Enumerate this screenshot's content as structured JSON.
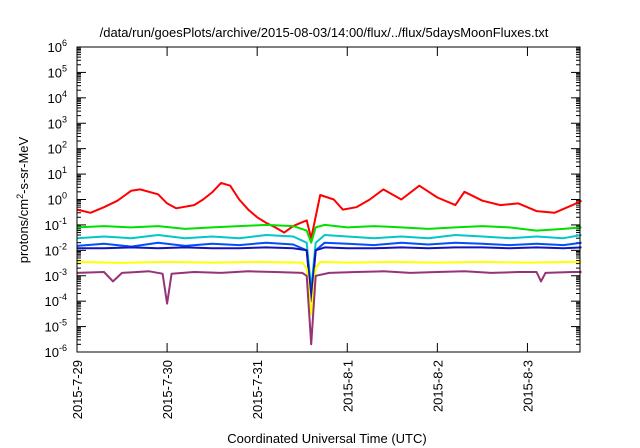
{
  "chart_data": {
    "type": "line",
    "title": "/data/run/goesPlots/archive/2015-08-03/14:00/flux/../flux/5daysMoonFluxes.txt",
    "xlabel": "Coordinated Universal Time (UTC)",
    "ylabel": {
      "base": "protons/cm",
      "sup": "2",
      "rest": "-s-sr-MeV"
    },
    "yscale": "log",
    "ylim": [
      1e-06,
      1000000.0
    ],
    "xlim_days": [
      "2015-07-29T00:00",
      "2015-08-03T14:00"
    ],
    "y_ticks": [
      {
        "value": 1e-06,
        "exp": "-6"
      },
      {
        "value": 1e-05,
        "exp": "-5"
      },
      {
        "value": 0.0001,
        "exp": "-4"
      },
      {
        "value": 0.001,
        "exp": "-3"
      },
      {
        "value": 0.01,
        "exp": "-2"
      },
      {
        "value": 0.1,
        "exp": "-1"
      },
      {
        "value": 1,
        "exp": "0"
      },
      {
        "value": 10,
        "exp": "1"
      },
      {
        "value": 100,
        "exp": "2"
      },
      {
        "value": 1000,
        "exp": "3"
      },
      {
        "value": 10000,
        "exp": "4"
      },
      {
        "value": 100000,
        "exp": "5"
      },
      {
        "value": 1000000,
        "exp": "6"
      }
    ],
    "x_ticks": [
      {
        "day": 0,
        "label": "2015-7-29"
      },
      {
        "day": 1,
        "label": "2015-7-30"
      },
      {
        "day": 2,
        "label": "2015-7-31"
      },
      {
        "day": 3,
        "label": "2015-8-1"
      },
      {
        "day": 4,
        "label": "2015-8-2"
      },
      {
        "day": 5,
        "label": "2015-8-3"
      }
    ],
    "grid": false,
    "legend": "none",
    "series": [
      {
        "color": "#ff0000",
        "x": [
          0,
          0.15,
          0.3,
          0.45,
          0.6,
          0.7,
          0.9,
          1.0,
          1.1,
          1.3,
          1.4,
          1.5,
          1.6,
          1.7,
          1.8,
          1.9,
          2.0,
          2.1,
          2.2,
          2.3,
          2.4,
          2.48,
          2.55,
          2.6,
          2.7,
          2.85,
          2.95,
          3.1,
          3.25,
          3.4,
          3.6,
          3.8,
          4.0,
          4.2,
          4.3,
          4.5,
          4.7,
          4.9,
          5.1,
          5.3,
          5.5,
          5.6
        ],
        "values": [
          0.4,
          0.3,
          0.5,
          0.9,
          2.2,
          2.5,
          1.6,
          0.7,
          0.45,
          0.6,
          1.0,
          1.9,
          4.5,
          3.5,
          1.0,
          0.4,
          0.2,
          0.12,
          0.08,
          0.05,
          0.09,
          0.12,
          0.15,
          0.03,
          1.5,
          1.0,
          0.4,
          0.5,
          1.0,
          2.5,
          1.0,
          3.5,
          1.2,
          0.6,
          2.0,
          0.9,
          0.6,
          0.7,
          0.35,
          0.3,
          0.6,
          0.9
        ]
      },
      {
        "color": "#00e000",
        "x": [
          0,
          0.3,
          0.6,
          0.9,
          1.2,
          1.5,
          1.8,
          2.1,
          2.4,
          2.55,
          2.6,
          2.65,
          2.75,
          3.0,
          3.3,
          3.6,
          3.9,
          4.2,
          4.5,
          4.8,
          5.1,
          5.4,
          5.6
        ],
        "values": [
          0.08,
          0.09,
          0.08,
          0.09,
          0.07,
          0.08,
          0.09,
          0.1,
          0.09,
          0.06,
          0.02,
          0.08,
          0.1,
          0.08,
          0.09,
          0.08,
          0.07,
          0.08,
          0.09,
          0.08,
          0.06,
          0.07,
          0.08
        ]
      },
      {
        "color": "#00c8c8",
        "x": [
          0,
          0.3,
          0.6,
          0.9,
          1.2,
          1.5,
          1.8,
          2.1,
          2.4,
          2.55,
          2.6,
          2.65,
          2.75,
          3.0,
          3.3,
          3.6,
          3.9,
          4.2,
          4.5,
          4.8,
          5.1,
          5.4,
          5.6
        ],
        "values": [
          0.03,
          0.035,
          0.03,
          0.04,
          0.03,
          0.035,
          0.03,
          0.04,
          0.035,
          0.02,
          0.0003,
          0.02,
          0.04,
          0.035,
          0.03,
          0.035,
          0.03,
          0.04,
          0.035,
          0.03,
          0.035,
          0.03,
          0.04
        ]
      },
      {
        "color": "#0050ff",
        "x": [
          0,
          0.3,
          0.6,
          0.9,
          1.2,
          1.5,
          1.8,
          2.1,
          2.4,
          2.55,
          2.6,
          2.65,
          2.75,
          3.0,
          3.3,
          3.6,
          3.9,
          4.2,
          4.5,
          4.8,
          5.1,
          5.4,
          5.6
        ],
        "values": [
          0.015,
          0.018,
          0.014,
          0.02,
          0.015,
          0.018,
          0.016,
          0.02,
          0.017,
          0.01,
          0.0002,
          0.01,
          0.02,
          0.018,
          0.016,
          0.02,
          0.017,
          0.02,
          0.018,
          0.016,
          0.018,
          0.016,
          0.02
        ]
      },
      {
        "color": "#1414b4",
        "x": [
          0,
          0.3,
          0.6,
          0.9,
          1.2,
          1.5,
          1.8,
          2.1,
          2.4,
          2.55,
          2.6,
          2.65,
          2.75,
          3.0,
          3.3,
          3.6,
          3.9,
          4.2,
          4.5,
          4.8,
          5.1,
          5.4,
          5.6
        ],
        "values": [
          0.012,
          0.012,
          0.013,
          0.012,
          0.013,
          0.012,
          0.012,
          0.013,
          0.012,
          0.01,
          0.0001,
          0.01,
          0.013,
          0.012,
          0.012,
          0.013,
          0.012,
          0.013,
          0.013,
          0.012,
          0.013,
          0.012,
          0.013
        ]
      },
      {
        "color": "#ffff00",
        "x": [
          0,
          0.5,
          1.0,
          1.5,
          2.0,
          2.5,
          2.55,
          2.6,
          2.65,
          2.7,
          3.0,
          3.5,
          4.0,
          4.5,
          5.0,
          5.5,
          5.6
        ],
        "values": [
          0.0035,
          0.0032,
          0.0035,
          0.0033,
          0.0035,
          0.0033,
          0.002,
          3e-05,
          0.002,
          0.0035,
          0.0033,
          0.0035,
          0.0033,
          0.0035,
          0.0033,
          0.0035,
          0.0035
        ]
      },
      {
        "color": "#963278",
        "x": [
          0,
          0.3,
          0.4,
          0.5,
          0.8,
          0.95,
          1.0,
          1.05,
          1.3,
          1.6,
          1.9,
          2.2,
          2.5,
          2.55,
          2.6,
          2.65,
          2.8,
          3.1,
          3.4,
          3.7,
          4.0,
          4.3,
          4.6,
          4.9,
          5.1,
          5.15,
          5.2,
          5.5,
          5.6
        ],
        "values": [
          0.0013,
          0.0014,
          0.0006,
          0.0013,
          0.0015,
          0.0012,
          8e-05,
          0.0012,
          0.0014,
          0.0013,
          0.0015,
          0.0014,
          0.0013,
          0.001,
          2e-06,
          0.001,
          0.0013,
          0.0014,
          0.0015,
          0.0013,
          0.0014,
          0.0015,
          0.0013,
          0.0014,
          0.0014,
          0.0006,
          0.0013,
          0.0014,
          0.0014
        ]
      }
    ]
  }
}
